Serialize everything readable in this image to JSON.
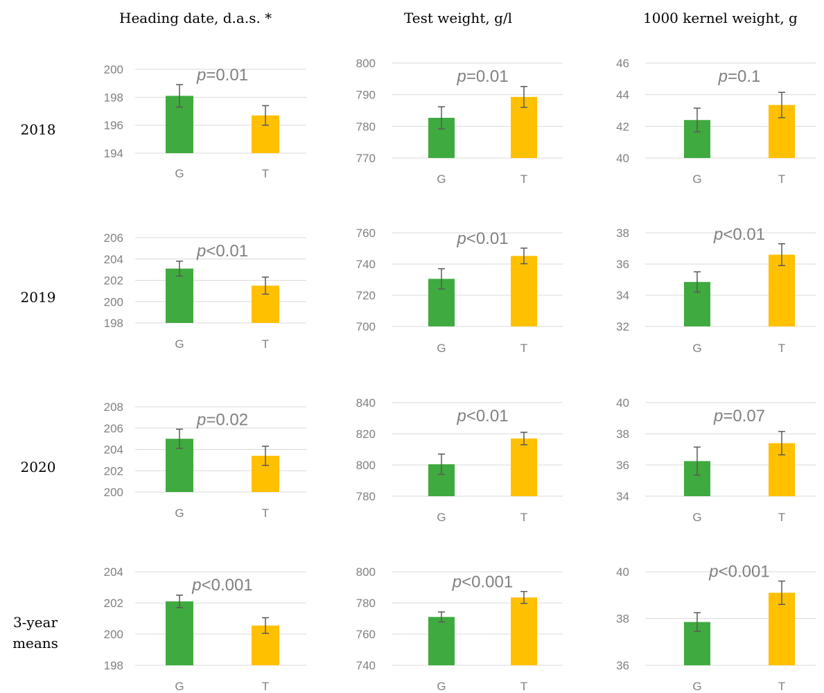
{
  "column_titles": [
    "Heading date, d.a.s. *",
    "Test weight, g/l",
    "1000 kernel weight, g"
  ],
  "row_labels": [
    "2018",
    "2019",
    "2020",
    "3-year\nmeans"
  ],
  "colors": {
    "G": "#3faa3f",
    "T": "#ffc000",
    "grid": "#d9d9d9",
    "text": "#808080",
    "error_bar": "#595959"
  },
  "chart_data": [
    {
      "type": "bar",
      "row": "2018",
      "metric": "Heading date, d.a.s. *",
      "categories": [
        "G",
        "T"
      ],
      "values": [
        198.1,
        196.7
      ],
      "errors": [
        0.8,
        0.7
      ],
      "ylim": [
        194,
        200
      ],
      "ticks": [
        194,
        196,
        198,
        200
      ],
      "annotation": {
        "italic": "p",
        "text": "=0.01"
      }
    },
    {
      "type": "bar",
      "row": "2018",
      "metric": "Test weight, g/l",
      "categories": [
        "G",
        "T"
      ],
      "values": [
        782.7,
        789.3
      ],
      "errors": [
        3.5,
        3.3
      ],
      "ylim": [
        770,
        800
      ],
      "ticks": [
        770,
        780,
        790,
        800
      ],
      "annotation": {
        "italic": "p",
        "text": "=0.01"
      }
    },
    {
      "type": "bar",
      "row": "2018",
      "metric": "1000 kernel weight, g",
      "categories": [
        "G",
        "T"
      ],
      "values": [
        42.4,
        43.35
      ],
      "errors": [
        0.75,
        0.8
      ],
      "ylim": [
        40,
        46
      ],
      "ticks": [
        40,
        42,
        44,
        46
      ],
      "annotation": {
        "italic": "p",
        "text": "=0.1"
      }
    },
    {
      "type": "bar",
      "row": "2019",
      "metric": "Heading date, d.a.s. *",
      "categories": [
        "G",
        "T"
      ],
      "values": [
        203.1,
        201.5
      ],
      "errors": [
        0.7,
        0.8
      ],
      "ylim": [
        198,
        206
      ],
      "ticks": [
        198,
        200,
        202,
        204,
        206
      ],
      "annotation": {
        "italic": "p",
        "text": "<0.01"
      }
    },
    {
      "type": "bar",
      "row": "2019",
      "metric": "Test weight, g/l",
      "categories": [
        "G",
        "T"
      ],
      "values": [
        730.5,
        745.2
      ],
      "errors": [
        6.5,
        5
      ],
      "ylim": [
        700,
        760
      ],
      "ticks": [
        700,
        720,
        740,
        760
      ],
      "annotation": {
        "italic": "p",
        "text": "<0.01"
      }
    },
    {
      "type": "bar",
      "row": "2019",
      "metric": "1000 kernel weight, g",
      "categories": [
        "G",
        "T"
      ],
      "values": [
        34.85,
        36.6
      ],
      "errors": [
        0.65,
        0.7
      ],
      "ylim": [
        32,
        38
      ],
      "ticks": [
        32,
        34,
        36,
        38
      ],
      "annotation": {
        "italic": "p",
        "text": "<0.01"
      }
    },
    {
      "type": "bar",
      "row": "2020",
      "metric": "Heading date, d.a.s. *",
      "categories": [
        "G",
        "T"
      ],
      "values": [
        205.0,
        203.4
      ],
      "errors": [
        0.9,
        0.9
      ],
      "ylim": [
        200,
        208
      ],
      "ticks": [
        200,
        202,
        204,
        206,
        208
      ],
      "annotation": {
        "italic": "p",
        "text": "=0.02"
      }
    },
    {
      "type": "bar",
      "row": "2020",
      "metric": "Test weight, g/l",
      "categories": [
        "G",
        "T"
      ],
      "values": [
        800.5,
        817.0
      ],
      "errors": [
        6.5,
        4
      ],
      "ylim": [
        780,
        840
      ],
      "ticks": [
        780,
        800,
        820,
        840
      ],
      "annotation": {
        "italic": "p",
        "text": "<0.01"
      }
    },
    {
      "type": "bar",
      "row": "2020",
      "metric": "1000 kernel weight, g",
      "categories": [
        "G",
        "T"
      ],
      "values": [
        36.25,
        37.4
      ],
      "errors": [
        0.9,
        0.75
      ],
      "ylim": [
        34,
        40
      ],
      "ticks": [
        34,
        36,
        38,
        40
      ],
      "annotation": {
        "italic": "p",
        "text": "=0.07"
      }
    },
    {
      "type": "bar",
      "row": "3-year means",
      "metric": "Heading date, d.a.s. *",
      "categories": [
        "G",
        "T"
      ],
      "values": [
        202.1,
        200.55
      ],
      "errors": [
        0.4,
        0.5
      ],
      "ylim": [
        198,
        204
      ],
      "ticks": [
        198,
        200,
        202,
        204
      ],
      "annotation": {
        "italic": "p",
        "text": "<0.001"
      }
    },
    {
      "type": "bar",
      "row": "3-year means",
      "metric": "Test weight, g/l",
      "categories": [
        "G",
        "T"
      ],
      "values": [
        771.0,
        783.5
      ],
      "errors": [
        3.2,
        3.8
      ],
      "ylim": [
        740,
        800
      ],
      "ticks": [
        740,
        760,
        780,
        800
      ],
      "annotation": {
        "italic": "p",
        "text": "<0.001"
      }
    },
    {
      "type": "bar",
      "row": "3-year means",
      "metric": "1000 kernel weight, g",
      "categories": [
        "G",
        "T"
      ],
      "values": [
        37.85,
        39.1
      ],
      "errors": [
        0.4,
        0.5
      ],
      "ylim": [
        36,
        40
      ],
      "ticks": [
        36,
        38,
        40
      ],
      "annotation": {
        "italic": "p",
        "text": "<0.001"
      }
    }
  ]
}
